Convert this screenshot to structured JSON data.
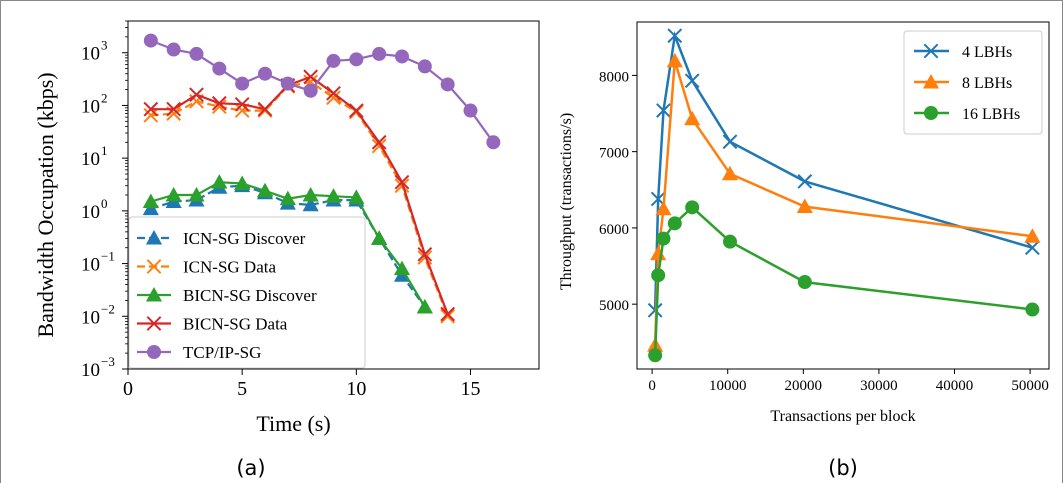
{
  "colors": {
    "blue": "#1f77b4",
    "orange": "#ff7f0e",
    "green": "#2ca02c",
    "red": "#d62728",
    "purple": "#9467bd"
  },
  "chart_data": [
    {
      "type": "line",
      "caption": "(a)",
      "xlabel": "Time (s)",
      "ylabel": "Bandwidth Occupation (kbps)",
      "xlim": [
        0,
        18
      ],
      "ylim": [
        0.001,
        4000
      ],
      "yscale": "log",
      "xticks": [
        "0",
        "5",
        "10",
        "15"
      ],
      "xtick_values": [
        0,
        5,
        10,
        15
      ],
      "yticks": [
        "10",
        "10",
        "10",
        "10",
        "10",
        "10",
        "10"
      ],
      "ytick_exponents": [
        "−3",
        "−2",
        "−1",
        "0",
        "1",
        "2",
        "3"
      ],
      "ytick_values": [
        0.001,
        0.01,
        0.1,
        1,
        10,
        100,
        1000
      ],
      "legend_position": "lower-left",
      "series": [
        {
          "name": "ICN-SG Discover",
          "color": "blue",
          "marker": "triangle",
          "dashed": true,
          "x": [
            1,
            2,
            3,
            4,
            5,
            6,
            7,
            8,
            9,
            10,
            11,
            12,
            13
          ],
          "y": [
            1.1,
            1.5,
            1.6,
            2.8,
            3.0,
            2.2,
            1.4,
            1.3,
            1.6,
            1.6,
            0.3,
            0.06,
            0.015
          ]
        },
        {
          "name": "ICN-SG Data",
          "color": "orange",
          "marker": "x",
          "dashed": true,
          "x": [
            1,
            2,
            3,
            4,
            5,
            6,
            7,
            8,
            9,
            10,
            11,
            12,
            13,
            14
          ],
          "y": [
            65,
            70,
            120,
            95,
            80,
            80,
            230,
            280,
            140,
            75,
            17,
            3.0,
            0.13,
            0.01
          ]
        },
        {
          "name": "BICN-SG Discover",
          "color": "green",
          "marker": "triangle",
          "dashed": false,
          "x": [
            1,
            2,
            3,
            4,
            5,
            6,
            7,
            8,
            9,
            10,
            11,
            12,
            13
          ],
          "y": [
            1.5,
            2.0,
            2.0,
            3.5,
            3.3,
            2.4,
            1.7,
            2.0,
            1.9,
            1.8,
            0.3,
            0.08,
            0.015
          ]
        },
        {
          "name": "BICN-SG Data",
          "color": "red",
          "marker": "x",
          "dashed": false,
          "x": [
            1,
            2,
            3,
            4,
            5,
            6,
            7,
            8,
            9,
            10,
            11,
            12,
            13,
            14
          ],
          "y": [
            85,
            85,
            160,
            110,
            105,
            85,
            240,
            350,
            170,
            80,
            20,
            3.5,
            0.15,
            0.011
          ]
        },
        {
          "name": "TCP/IP-SG",
          "color": "purple",
          "marker": "circle",
          "dashed": false,
          "x": [
            1,
            2,
            3,
            4,
            5,
            6,
            7,
            8,
            9,
            10,
            11,
            12,
            13,
            14,
            15,
            16
          ],
          "y": [
            1700,
            1150,
            950,
            500,
            260,
            400,
            260,
            190,
            700,
            750,
            950,
            850,
            550,
            250,
            80,
            20
          ]
        }
      ]
    },
    {
      "type": "line",
      "caption": "(b)",
      "xlabel": "Transactions per block",
      "ylabel": "Throughput (transactions/s)",
      "xlim": [
        -2000,
        52500
      ],
      "ylim": [
        4150,
        8700
      ],
      "xticks": [
        "0",
        "10000",
        "20000",
        "30000",
        "40000",
        "50000"
      ],
      "xtick_values": [
        0,
        10000,
        20000,
        30000,
        40000,
        50000
      ],
      "yticks": [
        "5000",
        "6000",
        "7000",
        "8000"
      ],
      "ytick_values": [
        5000,
        6000,
        7000,
        8000
      ],
      "legend_position": "top-right",
      "series": [
        {
          "name": "4 LBHs",
          "color": "blue",
          "marker": "x",
          "x": [
            400,
            800,
            1500,
            3000,
            5300,
            10300,
            20200,
            50300
          ],
          "y": [
            4920,
            6380,
            7540,
            8520,
            7930,
            7130,
            6610,
            5740
          ]
        },
        {
          "name": "8 LBHs",
          "color": "orange",
          "marker": "triangle",
          "x": [
            400,
            800,
            1500,
            3000,
            5300,
            10300,
            20200,
            50300
          ],
          "y": [
            4460,
            5660,
            6250,
            8190,
            7430,
            6710,
            6280,
            5890
          ]
        },
        {
          "name": "16 LBHs",
          "color": "green",
          "marker": "circle",
          "x": [
            400,
            800,
            1500,
            3000,
            5300,
            10300,
            20200,
            50300
          ],
          "y": [
            4330,
            5380,
            5860,
            6060,
            6270,
            5820,
            5290,
            4930
          ]
        }
      ]
    }
  ]
}
